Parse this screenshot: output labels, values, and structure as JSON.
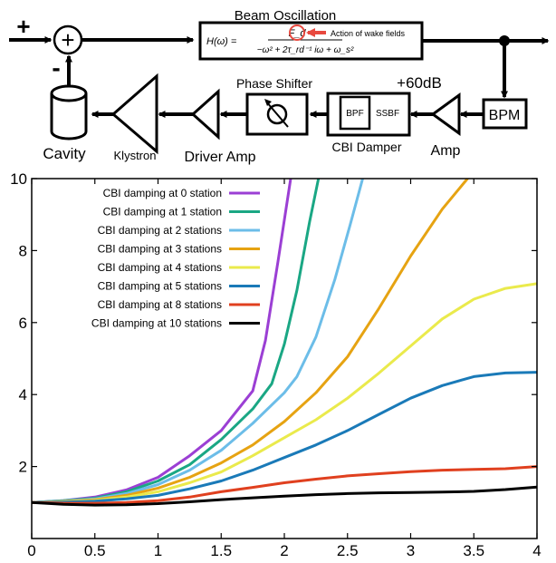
{
  "diagram": {
    "plus_sign": "+",
    "minus_sign": "-",
    "summer_symbol": "+",
    "beam_title": "Beam Oscillation",
    "transfer_lhs": "H(ω) =",
    "transfer_numerator": "F_d",
    "transfer_denominator": "−ω² + 2τ_rd⁻¹ iω + ω_s²",
    "wake_annotation": "Action of wake fields",
    "bpm_label": "BPM",
    "gain_label": "+60dB",
    "amp_label": "Amp",
    "cbi_damper_label": "CBI Damper",
    "bpf_label": "BPF",
    "ssbf_label": "SSBF",
    "phase_shifter_label": "Phase Shifter",
    "driver_amp_label": "Driver Amp",
    "klystron_label": "Klystron",
    "cavity_label": "Cavity",
    "colors": {
      "line": "#000000",
      "annotation": "#e8493f"
    }
  },
  "chart_data": {
    "type": "line",
    "x_ticks": [
      "0",
      "0.5",
      "1",
      "1.5",
      "2",
      "2.5",
      "3",
      "3.5",
      "4"
    ],
    "y_ticks": [
      "2",
      "4",
      "6",
      "8",
      "10"
    ],
    "xlim": [
      0,
      4
    ],
    "ylim": [
      0,
      10
    ],
    "grid": false,
    "legend_placement": "top-left",
    "series": [
      {
        "name": "CBI damping at 0 station",
        "color": "#9b3fd4",
        "x": [
          0,
          0.25,
          0.5,
          0.75,
          1.0,
          1.25,
          1.5,
          1.75,
          1.85,
          1.95,
          2.05
        ],
        "y": [
          1.0,
          1.05,
          1.15,
          1.35,
          1.7,
          2.3,
          3.0,
          4.1,
          5.5,
          7.7,
          10.0
        ]
      },
      {
        "name": "CBI damping at 1 station",
        "color": "#1aa784",
        "x": [
          0,
          0.25,
          0.5,
          0.75,
          1.0,
          1.25,
          1.5,
          1.75,
          1.9,
          2.0,
          2.1,
          2.2,
          2.27
        ],
        "y": [
          1.0,
          1.05,
          1.12,
          1.3,
          1.6,
          2.05,
          2.75,
          3.6,
          4.3,
          5.4,
          6.9,
          8.8,
          10.0
        ]
      },
      {
        "name": "CBI damping at 2 stations",
        "color": "#6cbde8",
        "x": [
          0,
          0.25,
          0.5,
          0.75,
          1.0,
          1.25,
          1.5,
          1.75,
          2.0,
          2.1,
          2.25,
          2.4,
          2.52,
          2.62
        ],
        "y": [
          1.0,
          1.04,
          1.1,
          1.25,
          1.5,
          1.9,
          2.45,
          3.2,
          4.05,
          4.5,
          5.6,
          7.2,
          8.7,
          10.0
        ]
      },
      {
        "name": "CBI damping at 3 stations",
        "color": "#e6a312",
        "x": [
          0,
          0.25,
          0.5,
          0.75,
          1.0,
          1.25,
          1.5,
          1.75,
          2.0,
          2.25,
          2.5,
          2.75,
          3.0,
          3.25,
          3.45
        ],
        "y": [
          1.0,
          1.03,
          1.08,
          1.2,
          1.4,
          1.7,
          2.1,
          2.6,
          3.25,
          4.05,
          5.05,
          6.4,
          7.85,
          9.15,
          10.0
        ]
      },
      {
        "name": "CBI damping at 4 stations",
        "color": "#eaea4c",
        "x": [
          0,
          0.25,
          0.5,
          0.75,
          1.0,
          1.25,
          1.5,
          1.75,
          2.0,
          2.25,
          2.5,
          2.75,
          3.0,
          3.25,
          3.5,
          3.75,
          4.0
        ],
        "y": [
          1.0,
          1.02,
          1.06,
          1.15,
          1.3,
          1.55,
          1.85,
          2.3,
          2.8,
          3.3,
          3.9,
          4.6,
          5.35,
          6.1,
          6.65,
          6.95,
          7.08
        ]
      },
      {
        "name": "CBI damping at 5 stations",
        "color": "#1a7ab8",
        "x": [
          0,
          0.25,
          0.5,
          0.75,
          1.0,
          1.25,
          1.5,
          1.75,
          2.0,
          2.25,
          2.5,
          2.75,
          3.0,
          3.25,
          3.5,
          3.75,
          4.0
        ],
        "y": [
          1.0,
          1.01,
          1.04,
          1.1,
          1.2,
          1.38,
          1.6,
          1.9,
          2.25,
          2.6,
          3.0,
          3.45,
          3.9,
          4.25,
          4.5,
          4.6,
          4.62
        ]
      },
      {
        "name": "CBI damping at 8 stations",
        "color": "#e0401f",
        "x": [
          0,
          0.25,
          0.5,
          0.75,
          1.0,
          1.25,
          1.5,
          1.75,
          2.0,
          2.25,
          2.5,
          2.75,
          3.0,
          3.25,
          3.5,
          3.75,
          4.0
        ],
        "y": [
          1.0,
          0.98,
          0.98,
          1.0,
          1.05,
          1.15,
          1.3,
          1.42,
          1.55,
          1.65,
          1.74,
          1.8,
          1.86,
          1.9,
          1.92,
          1.94,
          2.0
        ]
      },
      {
        "name": "CBI damping at 10 stations",
        "color": "#000000",
        "x": [
          0,
          0.25,
          0.5,
          0.75,
          1.0,
          1.25,
          1.5,
          1.75,
          2.0,
          2.25,
          2.5,
          2.75,
          3.0,
          3.25,
          3.5,
          3.75,
          4.0
        ],
        "y": [
          1.0,
          0.95,
          0.93,
          0.94,
          0.97,
          1.02,
          1.08,
          1.13,
          1.18,
          1.22,
          1.25,
          1.27,
          1.28,
          1.29,
          1.31,
          1.36,
          1.43
        ]
      }
    ]
  }
}
